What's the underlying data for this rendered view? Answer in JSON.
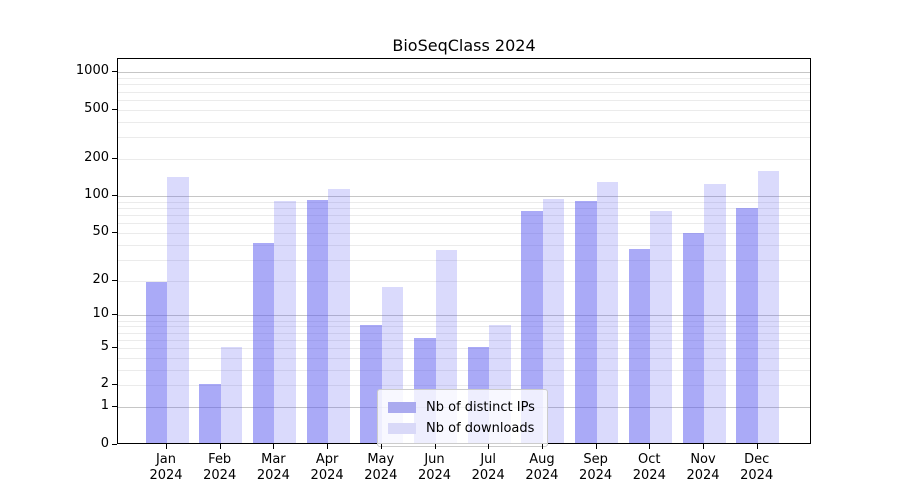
{
  "title": "BioSeqClass 2024",
  "chart_data": {
    "type": "bar",
    "title": "BioSeqClass 2024",
    "categories": [
      "Jan 2024",
      "Feb 2024",
      "Mar 2024",
      "Apr 2024",
      "May 2024",
      "Jun 2024",
      "Jul 2024",
      "Aug 2024",
      "Sep 2024",
      "Oct 2024",
      "Nov 2024",
      "Dec 2024"
    ],
    "months": [
      "Jan",
      "Feb",
      "Mar",
      "Apr",
      "May",
      "Jun",
      "Jul",
      "Aug",
      "Sep",
      "Oct",
      "Nov",
      "Dec"
    ],
    "year_label": "2024",
    "series": [
      {
        "name": "Nb of distinct IPs",
        "bar_color": "rgba(85,85,240,0.50)",
        "legend_color": "#aaaaef",
        "values": [
          19,
          2,
          40,
          90,
          8,
          6,
          5,
          73,
          88,
          36,
          48,
          77
        ]
      },
      {
        "name": "Nb of downloads",
        "bar_color": "rgba(85,85,240,0.22)",
        "legend_color": "#d9d9f8",
        "values": [
          140,
          5,
          88,
          111,
          17,
          35,
          8,
          92,
          126,
          73,
          122,
          154
        ]
      }
    ],
    "y_axis": {
      "scale": "log1p",
      "tick_values": [
        0,
        1,
        2,
        5,
        10,
        20,
        50,
        100,
        200,
        500,
        1000
      ],
      "tick_labels": [
        "0",
        "1",
        "2",
        "5",
        "10",
        "20",
        "50",
        "100",
        "200",
        "500",
        "1000"
      ],
      "major_grid_values": [
        1,
        10,
        100,
        1000
      ],
      "minor_grid_values": [
        2,
        3,
        4,
        5,
        6,
        7,
        8,
        9,
        20,
        30,
        40,
        50,
        60,
        70,
        80,
        90,
        200,
        300,
        400,
        500,
        600,
        700,
        800,
        900
      ],
      "ylim": [
        0,
        1275
      ],
      "grid": true
    },
    "legend_position": "lower center"
  }
}
